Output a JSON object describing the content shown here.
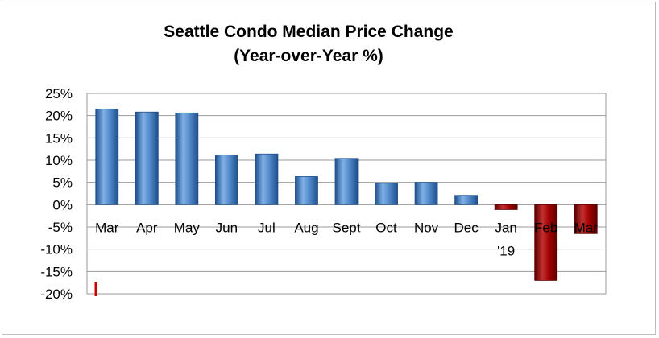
{
  "chart_data": {
    "type": "bar",
    "title": "Seattle Condo Median Price Change",
    "subtitle": "(Year-over-Year %)",
    "categories": [
      "Mar",
      "Apr",
      "May",
      "Jun",
      "Jul",
      "Aug",
      "Sept",
      "Oct",
      "Nov",
      "Dec",
      "Jan\n'19",
      "Feb",
      "Mar"
    ],
    "values": [
      21.5,
      20.8,
      20.6,
      11.2,
      11.4,
      6.3,
      10.4,
      4.8,
      5.0,
      2.1,
      -1.1,
      -17.0,
      -6.5
    ],
    "ylim": [
      -20,
      25
    ],
    "yticks": [
      25,
      20,
      15,
      10,
      5,
      0,
      -5,
      -10,
      -15,
      -20
    ],
    "ytick_labels": [
      "25%",
      "20%",
      "15%",
      "10%",
      "5%",
      "0%",
      "-5%",
      "-10%",
      "-15%",
      "-20%"
    ],
    "xlabel": "",
    "ylabel": "",
    "grid": true,
    "legend": "none",
    "colors": {
      "positive": "#4f86c6",
      "positive_light": "#7fb0e6",
      "positive_dark": "#1f4f8c",
      "negative": "#a00000",
      "negative_light": "#c23030",
      "negative_dark": "#5a0000",
      "grid": "#9a9a9a",
      "marker": "#cc0000"
    }
  }
}
